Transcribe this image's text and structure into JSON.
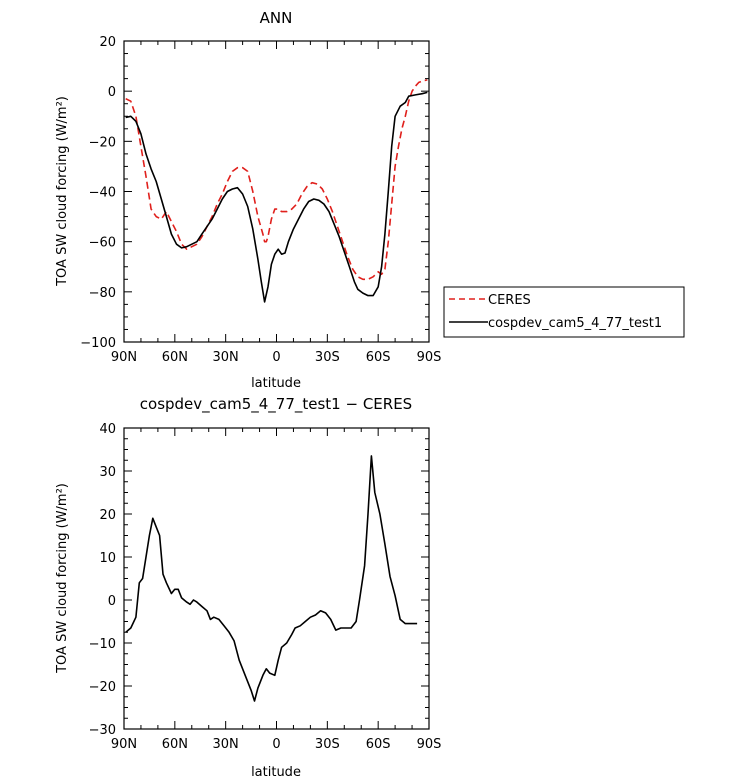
{
  "chart_data": [
    {
      "type": "line",
      "title": "ANN",
      "xlabel": "latitude",
      "ylabel": "TOA SW cloud forcing (W/m²)",
      "xlim": [
        90,
        -90
      ],
      "ylim": [
        -100,
        20
      ],
      "x_ticks": [
        90,
        60,
        30,
        0,
        -30,
        -60,
        -90
      ],
      "x_tick_labels": [
        "90N",
        "60N",
        "30N",
        "0",
        "30S",
        "60S",
        "90S"
      ],
      "y_ticks": [
        20,
        0,
        -20,
        -40,
        -60,
        -80,
        -100
      ],
      "y_tick_labels": [
        "20",
        "0",
        "−20",
        "−40",
        "−60",
        "−80",
        "−100"
      ],
      "legend": {
        "placement": "right-outside"
      },
      "series": [
        {
          "name": "CERES",
          "color": "#e0201c",
          "dash": "dashed",
          "points": [
            [
              89,
              -3
            ],
            [
              86,
              -4
            ],
            [
              83,
              -10
            ],
            [
              80,
              -22
            ],
            [
              77,
              -34
            ],
            [
              74,
              -47
            ],
            [
              71,
              -50
            ],
            [
              68,
              -51
            ],
            [
              65,
              -48
            ],
            [
              62,
              -52
            ],
            [
              59,
              -56
            ],
            [
              56,
              -61
            ],
            [
              53,
              -63
            ],
            [
              50,
              -62
            ],
            [
              47,
              -61
            ],
            [
              44,
              -58
            ],
            [
              41,
              -54
            ],
            [
              38,
              -50
            ],
            [
              35,
              -45
            ],
            [
              32,
              -41
            ],
            [
              29,
              -36
            ],
            [
              26,
              -32
            ],
            [
              23,
              -30.5
            ],
            [
              20,
              -30.5
            ],
            [
              17,
              -32
            ],
            [
              14,
              -40
            ],
            [
              11,
              -50
            ],
            [
              8,
              -57
            ],
            [
              7,
              -60
            ],
            [
              6,
              -60
            ],
            [
              5,
              -58
            ],
            [
              3,
              -51
            ],
            [
              1,
              -47
            ],
            [
              -1,
              -47
            ],
            [
              -3,
              -48
            ],
            [
              -6,
              -48
            ],
            [
              -9,
              -47
            ],
            [
              -12,
              -45
            ],
            [
              -15,
              -41
            ],
            [
              -18,
              -38
            ],
            [
              -21,
              -36.5
            ],
            [
              -24,
              -37
            ],
            [
              -27,
              -39
            ],
            [
              -30,
              -43
            ],
            [
              -33,
              -48
            ],
            [
              -36,
              -54
            ],
            [
              -39,
              -60
            ],
            [
              -42,
              -66
            ],
            [
              -45,
              -71
            ],
            [
              -48,
              -74
            ],
            [
              -51,
              -75
            ],
            [
              -54,
              -75
            ],
            [
              -57,
              -74
            ],
            [
              -60,
              -72
            ],
            [
              -62,
              -73
            ],
            [
              -64,
              -71
            ],
            [
              -66,
              -60
            ],
            [
              -68,
              -45
            ],
            [
              -70,
              -30
            ],
            [
              -72,
              -22
            ],
            [
              -74,
              -15
            ],
            [
              -76,
              -10
            ],
            [
              -78,
              -4
            ],
            [
              -80,
              0
            ],
            [
              -82,
              2
            ],
            [
              -84,
              3.5
            ],
            [
              -86,
              4
            ],
            [
              -89,
              4.5
            ]
          ]
        },
        {
          "name": "cospdev_cam5_4_77_test1",
          "color": "#000000",
          "dash": "solid",
          "points": [
            [
              89,
              -10.5
            ],
            [
              86,
              -10
            ],
            [
              83,
              -12
            ],
            [
              80,
              -17
            ],
            [
              77,
              -25
            ],
            [
              74,
              -31
            ],
            [
              71,
              -36
            ],
            [
              68,
              -43
            ],
            [
              65,
              -50
            ],
            [
              62,
              -57
            ],
            [
              59,
              -61
            ],
            [
              56,
              -62.5
            ],
            [
              53,
              -62
            ],
            [
              50,
              -61
            ],
            [
              47,
              -60
            ],
            [
              44,
              -57
            ],
            [
              41,
              -54
            ],
            [
              38,
              -51
            ],
            [
              35,
              -47
            ],
            [
              32,
              -43
            ],
            [
              29,
              -40
            ],
            [
              26,
              -39
            ],
            [
              23,
              -38.5
            ],
            [
              20,
              -41
            ],
            [
              17,
              -46
            ],
            [
              14,
              -55
            ],
            [
              11,
              -67
            ],
            [
              9,
              -76
            ],
            [
              7,
              -84
            ],
            [
              5,
              -78
            ],
            [
              3,
              -69
            ],
            [
              1,
              -65
            ],
            [
              -1,
              -63
            ],
            [
              -3,
              -65
            ],
            [
              -5,
              -64.5
            ],
            [
              -7,
              -60
            ],
            [
              -10,
              -55
            ],
            [
              -13,
              -51
            ],
            [
              -16,
              -47
            ],
            [
              -19,
              -44
            ],
            [
              -22,
              -43
            ],
            [
              -25,
              -43.5
            ],
            [
              -28,
              -45
            ],
            [
              -31,
              -48
            ],
            [
              -34,
              -53
            ],
            [
              -37,
              -58
            ],
            [
              -40,
              -64
            ],
            [
              -43,
              -70
            ],
            [
              -46,
              -76
            ],
            [
              -48,
              -79
            ],
            [
              -51,
              -80.5
            ],
            [
              -54,
              -81.5
            ],
            [
              -57,
              -81.5
            ],
            [
              -60,
              -78
            ],
            [
              -62,
              -70
            ],
            [
              -64,
              -57
            ],
            [
              -66,
              -40
            ],
            [
              -68,
              -22
            ],
            [
              -70,
              -10
            ],
            [
              -73,
              -6
            ],
            [
              -76,
              -4.5
            ],
            [
              -78,
              -2
            ],
            [
              -82,
              -1.5
            ],
            [
              -86,
              -1
            ],
            [
              -89,
              -0.5
            ]
          ]
        }
      ]
    },
    {
      "type": "line",
      "title": "cospdev_cam5_4_77_test1 − CERES",
      "xlabel": "latitude",
      "ylabel": "TOA SW cloud forcing (W/m²)",
      "xlim": [
        90,
        -90
      ],
      "ylim": [
        -30,
        40
      ],
      "x_ticks": [
        90,
        60,
        30,
        0,
        -30,
        -60,
        -90
      ],
      "x_tick_labels": [
        "90N",
        "60N",
        "30N",
        "0",
        "30S",
        "60S",
        "90S"
      ],
      "y_ticks": [
        40,
        30,
        20,
        10,
        0,
        -10,
        -20,
        -30
      ],
      "y_tick_labels": [
        "40",
        "30",
        "20",
        "10",
        "0",
        "−10",
        "−20",
        "−30"
      ],
      "series": [
        {
          "name": "",
          "color": "#000000",
          "dash": "solid",
          "points": [
            [
              89,
              -7.5
            ],
            [
              86,
              -6.5
            ],
            [
              83,
              -4
            ],
            [
              81,
              4
            ],
            [
              79,
              5
            ],
            [
              77,
              10
            ],
            [
              75,
              15
            ],
            [
              73,
              19
            ],
            [
              71,
              17
            ],
            [
              69,
              15
            ],
            [
              67,
              6
            ],
            [
              65,
              4
            ],
            [
              62,
              1.5
            ],
            [
              60,
              2.5
            ],
            [
              58,
              2.5
            ],
            [
              56,
              0.5
            ],
            [
              53,
              -0.5
            ],
            [
              51,
              -1
            ],
            [
              49,
              0
            ],
            [
              47,
              -0.5
            ],
            [
              44,
              -1.5
            ],
            [
              41,
              -2.5
            ],
            [
              39,
              -4.5
            ],
            [
              37,
              -4
            ],
            [
              34,
              -4.5
            ],
            [
              31,
              -6
            ],
            [
              28,
              -7.5
            ],
            [
              25,
              -9.5
            ],
            [
              22,
              -14
            ],
            [
              18,
              -18
            ],
            [
              15,
              -21
            ],
            [
              13,
              -23.5
            ],
            [
              11,
              -20.5
            ],
            [
              8,
              -17.5
            ],
            [
              6,
              -16
            ],
            [
              4,
              -17
            ],
            [
              1,
              -17.5
            ],
            [
              -1,
              -14
            ],
            [
              -3,
              -11
            ],
            [
              -6,
              -10
            ],
            [
              -9,
              -8
            ],
            [
              -11,
              -6.5
            ],
            [
              -14,
              -6
            ],
            [
              -17,
              -5
            ],
            [
              -20,
              -4
            ],
            [
              -23,
              -3.5
            ],
            [
              -26,
              -2.5
            ],
            [
              -29,
              -3
            ],
            [
              -32,
              -4.5
            ],
            [
              -35,
              -7
            ],
            [
              -38,
              -6.5
            ],
            [
              -41,
              -6.5
            ],
            [
              -44,
              -6.5
            ],
            [
              -47,
              -5
            ],
            [
              -49,
              0
            ],
            [
              -52,
              8
            ],
            [
              -54,
              20
            ],
            [
              -56,
              33.5
            ],
            [
              -58,
              25
            ],
            [
              -61,
              20
            ],
            [
              -64,
              13
            ],
            [
              -67,
              5.5
            ],
            [
              -70,
              1
            ],
            [
              -73,
              -4.5
            ],
            [
              -76,
              -5.5
            ],
            [
              -80,
              -5.5
            ],
            [
              -83,
              -5.5
            ]
          ]
        }
      ]
    }
  ]
}
